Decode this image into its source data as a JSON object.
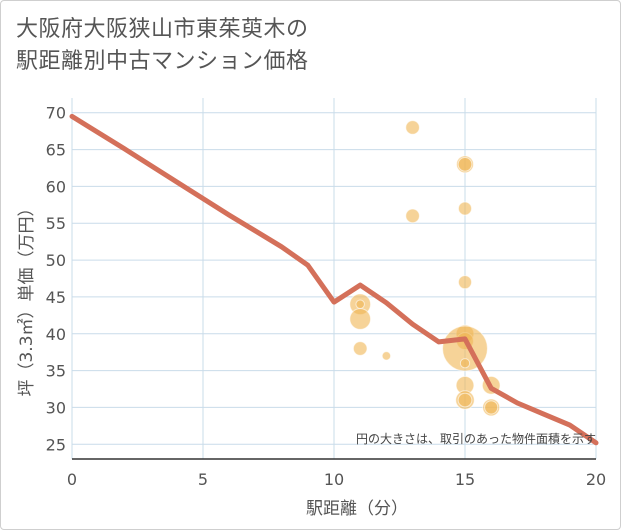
{
  "title_line1": "大阪府大阪狭山市東茱萸木の",
  "title_line2": "駅距離別中古マンション価格",
  "chart_data": {
    "type": "scatter",
    "title": "大阪府大阪狭山市東茱萸木の駅距離別中古マンション価格",
    "xlabel": "駅距離（分）",
    "ylabel": "坪（3.3㎡）単価（万円）",
    "xlim": [
      0,
      20
    ],
    "ylim": [
      23,
      72
    ],
    "xticks": [
      0,
      5,
      10,
      15,
      20
    ],
    "yticks": [
      25,
      30,
      35,
      40,
      45,
      50,
      55,
      60,
      65,
      70
    ],
    "grid": true,
    "note": "円の大きさは、取引のあった物件面積を示す",
    "colors": {
      "bubble": "#f0b654",
      "line": "#d4705a",
      "grid": "#c9dcea"
    },
    "scatter_points": [
      {
        "x": 11,
        "y": 44,
        "size": 3
      },
      {
        "x": 11,
        "y": 42,
        "size": 3
      },
      {
        "x": 11,
        "y": 44,
        "size": 0.5
      },
      {
        "x": 11,
        "y": 38,
        "size": 1.3
      },
      {
        "x": 12,
        "y": 37,
        "size": 0.5
      },
      {
        "x": 13,
        "y": 68,
        "size": 1.3
      },
      {
        "x": 13,
        "y": 56,
        "size": 1.3
      },
      {
        "x": 15,
        "y": 63,
        "size": 2
      },
      {
        "x": 15,
        "y": 63,
        "size": 1.3
      },
      {
        "x": 15,
        "y": 57,
        "size": 1.2
      },
      {
        "x": 15,
        "y": 47,
        "size": 1.2
      },
      {
        "x": 15,
        "y": 40,
        "size": 2.2
      },
      {
        "x": 15,
        "y": 39,
        "size": 2
      },
      {
        "x": 15,
        "y": 38,
        "size": 14
      },
      {
        "x": 15,
        "y": 36,
        "size": 0.6
      },
      {
        "x": 15,
        "y": 33,
        "size": 2.2
      },
      {
        "x": 15,
        "y": 31,
        "size": 2.4
      },
      {
        "x": 15,
        "y": 31,
        "size": 1.3
      },
      {
        "x": 16,
        "y": 33,
        "size": 2.2
      },
      {
        "x": 16,
        "y": 30,
        "size": 2
      },
      {
        "x": 16,
        "y": 30,
        "size": 1.2
      }
    ],
    "line": {
      "x": [
        0,
        2,
        4,
        6,
        8,
        9,
        10,
        11,
        12,
        13,
        14,
        15,
        16,
        17,
        18,
        19,
        20
      ],
      "y": [
        69.5,
        65.1,
        60.6,
        56.1,
        51.8,
        49.3,
        44.3,
        46.6,
        44.2,
        41.3,
        38.9,
        39.3,
        32.6,
        30.6,
        29.1,
        27.6,
        25.2
      ]
    }
  }
}
